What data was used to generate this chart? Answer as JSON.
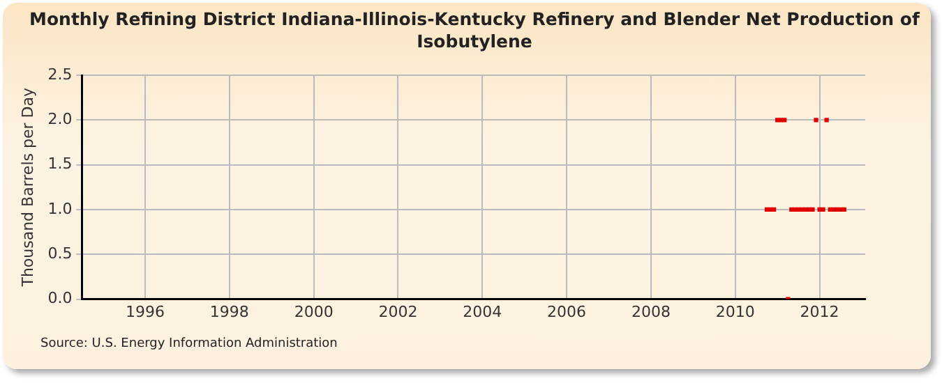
{
  "chart_data": {
    "type": "scatter",
    "title": "Monthly Refining District Indiana-Illinois-Kentucky Refinery and Blender Net Production of Isobutylene",
    "ylabel": "Thousand Barrels per Day",
    "annotations": [
      "Source: U.S. Energy Information Administration"
    ],
    "x": [
      "2010-10",
      "2010-11",
      "2010-12",
      "2011-01",
      "2011-02",
      "2011-03",
      "2011-04",
      "2011-05",
      "2011-06",
      "2011-07",
      "2011-08",
      "2011-09",
      "2011-10",
      "2011-11",
      "2011-12",
      "2012-01",
      "2012-02",
      "2012-03",
      "2012-04",
      "2012-05",
      "2012-06",
      "2012-07",
      "2012-08"
    ],
    "series": [
      {
        "color": "#e00000",
        "values": [
          1,
          1,
          1,
          2,
          2,
          2,
          0,
          1,
          1,
          1,
          1,
          1,
          1,
          1,
          2,
          1,
          1,
          2,
          1,
          1,
          1,
          1,
          1
        ]
      }
    ],
    "xlim": [
      "1994-07",
      "2013-02"
    ],
    "xticks": [
      "1996",
      "1998",
      "2000",
      "2002",
      "2004",
      "2006",
      "2008",
      "2010",
      "2012"
    ],
    "ylim": [
      0,
      2.5
    ],
    "yticks": [
      {
        "value": 0,
        "label": "0.0"
      },
      {
        "value": 0.5,
        "label": "0.5"
      },
      {
        "value": 1,
        "label": "1.0"
      },
      {
        "value": 1.5,
        "label": "1.5"
      },
      {
        "value": 2,
        "label": "2.0"
      },
      {
        "value": 2.5,
        "label": "2.5"
      }
    ],
    "grid": true,
    "marker": "square",
    "legend": false
  }
}
